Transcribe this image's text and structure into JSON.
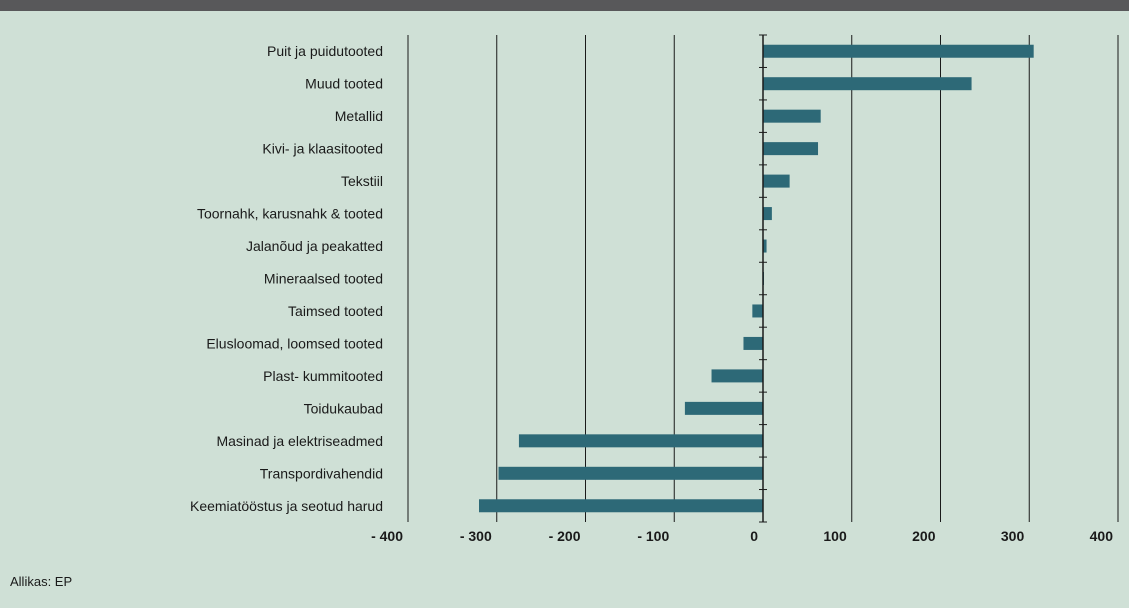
{
  "colors": {
    "background": "#cfe0d6",
    "bar": "#2d6977",
    "band": "#58585a",
    "grid": "#1a1a1a"
  },
  "chart_data": {
    "type": "bar",
    "orientation": "horizontal",
    "categories": [
      "Puit ja puidutooted",
      "Muud tooted",
      "Metallid",
      "Kivi- ja klaasitooted",
      "Tekstiil",
      "Toornahk, karusnahk & tooted",
      "Jalanõud ja peakatted",
      "Mineraalsed tooted",
      "Taimsed tooted",
      "Elusloomad, loomsed tooted",
      "Plast- kummitooted",
      "Toidukaubad",
      "Masinad ja elektriseadmed",
      "Transpordivahendid",
      "Keemiatööstus ja seotud harud"
    ],
    "values": [
      305,
      235,
      65,
      62,
      30,
      10,
      4,
      1,
      -12,
      -22,
      -58,
      -88,
      -275,
      -298,
      -320
    ],
    "ticks": [
      -400,
      -300,
      -200,
      -100,
      0,
      100,
      200,
      300,
      400
    ],
    "tick_labels": [
      "- 400",
      "- 300",
      "- 200",
      "- 100",
      "0",
      "100",
      "200",
      "300",
      "400"
    ],
    "xlim": [
      -400,
      400
    ],
    "grid": "vertical lines at ticks"
  },
  "footer": {
    "source": "Allikas: EP"
  }
}
